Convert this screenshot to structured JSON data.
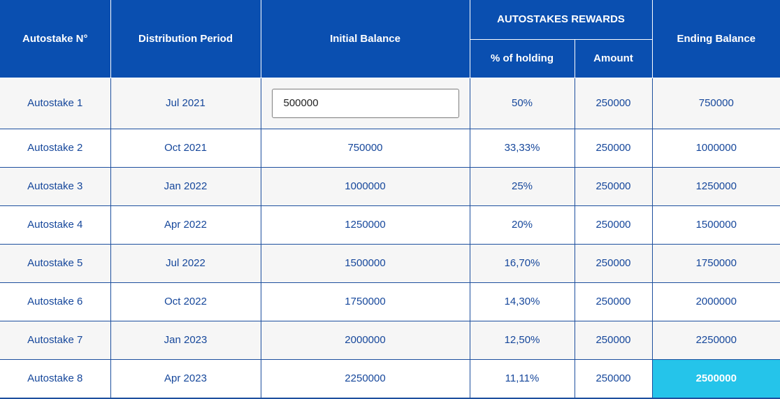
{
  "header": {
    "col_autostake": "Autostake N°",
    "col_period": "Distribution Period",
    "col_initial": "Initial Balance",
    "col_rewards": "AUTOSTAKES REWARDS",
    "col_percent": "% of holding",
    "col_amount": "Amount",
    "col_ending": "Ending Balance"
  },
  "input": {
    "initial_balance": "500000"
  },
  "rows": [
    {
      "autostake": "Autostake 1",
      "period": "Jul 2021",
      "initial": "",
      "percent": "50%",
      "amount": "250000",
      "ending": "750000"
    },
    {
      "autostake": "Autostake 2",
      "period": "Oct 2021",
      "initial": "750000",
      "percent": "33,33%",
      "amount": "250000",
      "ending": "1000000"
    },
    {
      "autostake": "Autostake 3",
      "period": "Jan 2022",
      "initial": "1000000",
      "percent": "25%",
      "amount": "250000",
      "ending": "1250000"
    },
    {
      "autostake": "Autostake 4",
      "period": "Apr 2022",
      "initial": "1250000",
      "percent": "20%",
      "amount": "250000",
      "ending": "1500000"
    },
    {
      "autostake": "Autostake 5",
      "period": "Jul 2022",
      "initial": "1500000",
      "percent": "16,70%",
      "amount": "250000",
      "ending": "1750000"
    },
    {
      "autostake": "Autostake 6",
      "period": "Oct 2022",
      "initial": "1750000",
      "percent": "14,30%",
      "amount": "250000",
      "ending": "2000000"
    },
    {
      "autostake": "Autostake 7",
      "period": "Jan 2023",
      "initial": "2000000",
      "percent": "12,50%",
      "amount": "250000",
      "ending": "2250000"
    },
    {
      "autostake": "Autostake 8",
      "period": "Apr 2023",
      "initial": "2250000",
      "percent": "11,11%",
      "amount": "250000",
      "ending": "2500000"
    }
  ],
  "colors": {
    "header_bg": "#0a4fb0",
    "text": "#16479b",
    "highlight": "#25c4ea"
  }
}
